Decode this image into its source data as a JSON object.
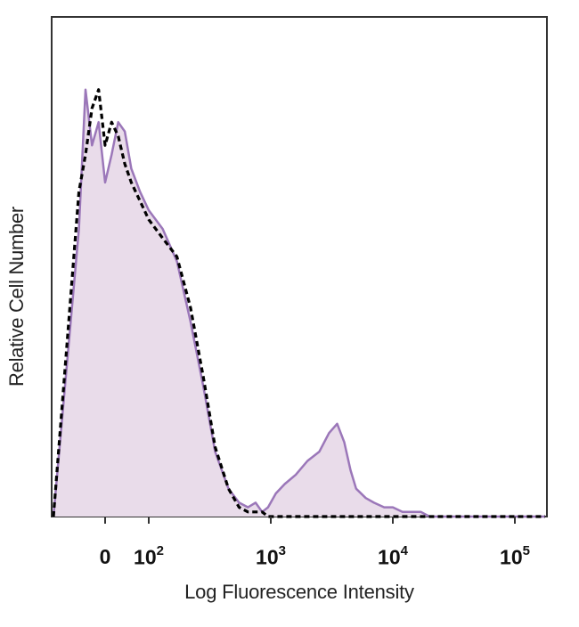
{
  "chart_data": {
    "type": "area",
    "xlabel": "Log Fluorescence Intensity",
    "ylabel": "Relative Cell Number",
    "x_scale": "biexponential (linear near 0, log above 10^2)",
    "x_ticks": [
      {
        "value": 0,
        "base": "0",
        "exp": ""
      },
      {
        "value": 100,
        "base": "10",
        "exp": "2"
      },
      {
        "value": 1000,
        "base": "10",
        "exp": "3"
      },
      {
        "value": 10000,
        "base": "10",
        "exp": "4"
      },
      {
        "value": 100000,
        "base": "10",
        "exp": "5"
      }
    ],
    "xlim": [
      -80,
      250000
    ],
    "ylim": [
      0,
      100
    ],
    "grid": false,
    "series": [
      {
        "style": "filled histogram",
        "fill": "#e9dcea",
        "stroke": "#9b77b9",
        "x": [
          -60,
          -45,
          -30,
          -15,
          0,
          15,
          30,
          45,
          60,
          80,
          100,
          130,
          170,
          220,
          280,
          350,
          450,
          550,
          650,
          750,
          850,
          950,
          1100,
          1300,
          1600,
          2000,
          2500,
          3000,
          3500,
          4000,
          4500,
          5000,
          6000,
          7000,
          8500,
          10000,
          12000,
          14000,
          17000,
          20000,
          30000,
          60000,
          150000
        ],
        "y": [
          62,
          92,
          80,
          85,
          72,
          78,
          85,
          83,
          75,
          70,
          66,
          62,
          55,
          42,
          28,
          14,
          6,
          3,
          2,
          3,
          1,
          2,
          5,
          7,
          9,
          12,
          14,
          18,
          20,
          16,
          10,
          6,
          4,
          3,
          2,
          2,
          1,
          1,
          1,
          0,
          0,
          0,
          0
        ]
      },
      {
        "style": "dashed black histogram",
        "stroke": "#000000",
        "x": [
          -60,
          -45,
          -30,
          -15,
          0,
          15,
          30,
          45,
          60,
          80,
          100,
          130,
          170,
          220,
          280,
          350,
          450,
          550,
          650,
          750,
          850,
          950,
          1100,
          1300,
          1600,
          2000,
          2500,
          3000,
          3500,
          4000,
          4500,
          5000,
          6000,
          7000,
          8500,
          10000,
          12000,
          14000,
          17000,
          20000,
          30000,
          60000,
          150000
        ],
        "y": [
          70,
          78,
          88,
          92,
          80,
          85,
          82,
          76,
          72,
          68,
          64,
          60,
          56,
          45,
          30,
          15,
          6,
          2,
          1,
          1,
          1,
          0,
          0,
          0,
          0,
          0,
          0,
          0,
          0,
          0,
          0,
          0,
          0,
          0,
          0,
          0,
          0,
          0,
          0,
          0,
          0,
          0,
          0
        ]
      }
    ]
  }
}
